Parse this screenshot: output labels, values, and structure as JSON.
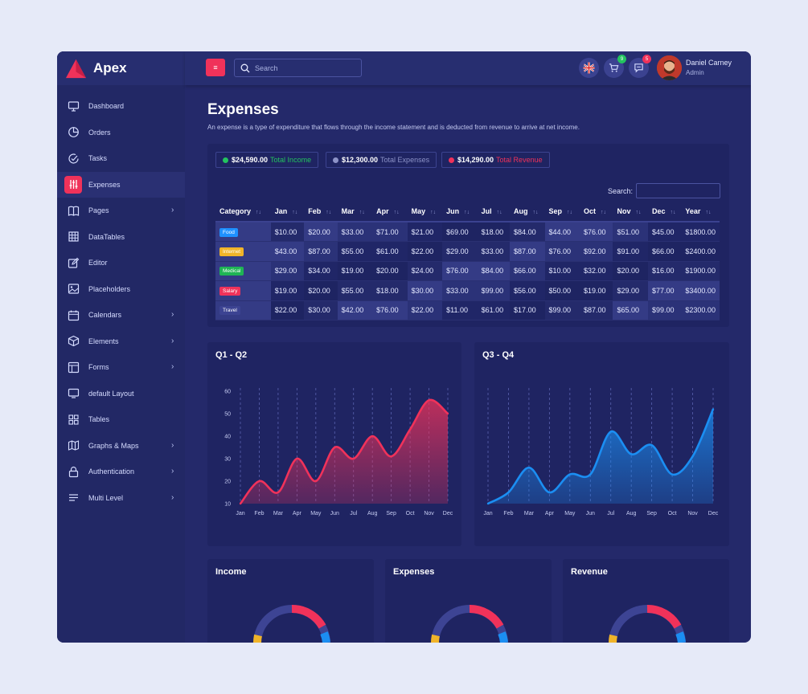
{
  "app": {
    "brand": "Apex"
  },
  "sidebar": {
    "items": [
      {
        "label": "Dashboard",
        "icon": "monitor-icon",
        "chevron": false,
        "active": false
      },
      {
        "label": "Orders",
        "icon": "pie-chart-icon",
        "chevron": false,
        "active": false
      },
      {
        "label": "Tasks",
        "icon": "check-clock-icon",
        "chevron": false,
        "active": false
      },
      {
        "label": "Expenses",
        "icon": "sliders-icon",
        "chevron": false,
        "active": true
      },
      {
        "label": "Pages",
        "icon": "book-icon",
        "chevron": true,
        "active": false
      },
      {
        "label": "DataTables",
        "icon": "grid-icon",
        "chevron": false,
        "active": false
      },
      {
        "label": "Editor",
        "icon": "edit-icon",
        "chevron": false,
        "active": false
      },
      {
        "label": "Placeholders",
        "icon": "image-icon",
        "chevron": false,
        "active": false
      },
      {
        "label": "Calendars",
        "icon": "calendar-icon",
        "chevron": true,
        "active": false
      },
      {
        "label": "Elements",
        "icon": "box-icon",
        "chevron": true,
        "active": false
      },
      {
        "label": "Forms",
        "icon": "layout-icon",
        "chevron": true,
        "active": false
      },
      {
        "label": "default Layout",
        "icon": "display-icon",
        "chevron": false,
        "active": false
      },
      {
        "label": "Tables",
        "icon": "tiles-icon",
        "chevron": false,
        "active": false
      },
      {
        "label": "Graphs & Maps",
        "icon": "map-icon",
        "chevron": true,
        "active": false
      },
      {
        "label": "Authentication",
        "icon": "lock-icon",
        "chevron": true,
        "active": false
      },
      {
        "label": "Multi Level",
        "icon": "list-icon",
        "chevron": true,
        "active": false
      }
    ]
  },
  "header": {
    "search_placeholder": "Search",
    "cart_badge": "9",
    "chat_badge": "5",
    "user_name": "Daniel Carney",
    "user_role": "Admin"
  },
  "page": {
    "title": "Expenses",
    "description": "An expense is a type of expenditure that flows through the income statement and is deducted from revenue to arrive at net income."
  },
  "summary": [
    {
      "value": "$24,590.00",
      "label": "Total Income",
      "color": "#23c35f"
    },
    {
      "value": "$12,300.00",
      "label": "Total Expenses",
      "color": "#8d93c8"
    },
    {
      "value": "$14,290.00",
      "label": "Total Revenue",
      "color": "#f0325a"
    }
  ],
  "table": {
    "search_label": "Search:",
    "headers": [
      "Category",
      "Jan",
      "Feb",
      "Mar",
      "Apr",
      "May",
      "Jun",
      "Jul",
      "Aug",
      "Sep",
      "Oct",
      "Nov",
      "Dec",
      "Year"
    ],
    "rows": [
      {
        "category": "Food",
        "color": "#1e90ff",
        "cells": [
          "$10.00",
          "$20.00",
          "$33.00",
          "$71.00",
          "$21.00",
          "$69.00",
          "$18.00",
          "$84.00",
          "$44.00",
          "$76.00",
          "$51.00",
          "$45.00",
          "$1800.00"
        ]
      },
      {
        "category": "Internet",
        "color": "#f0b429",
        "cells": [
          "$43.00",
          "$87.00",
          "$55.00",
          "$61.00",
          "$22.00",
          "$29.00",
          "$33.00",
          "$87.00",
          "$76.00",
          "$92.00",
          "$91.00",
          "$66.00",
          "$2400.00"
        ]
      },
      {
        "category": "Medical",
        "color": "#1fb455",
        "cells": [
          "$29.00",
          "$34.00",
          "$19.00",
          "$20.00",
          "$24.00",
          "$76.00",
          "$84.00",
          "$66.00",
          "$10.00",
          "$32.00",
          "$20.00",
          "$16.00",
          "$1900.00"
        ]
      },
      {
        "category": "Salary",
        "color": "#f0325a",
        "cells": [
          "$19.00",
          "$20.00",
          "$55.00",
          "$18.00",
          "$30.00",
          "$33.00",
          "$99.00",
          "$56.00",
          "$50.00",
          "$19.00",
          "$29.00",
          "$77.00",
          "$3400.00"
        ]
      },
      {
        "category": "Travel",
        "color": "#3c4392",
        "cells": [
          "$22.00",
          "$30.00",
          "$42.00",
          "$76.00",
          "$22.00",
          "$11.00",
          "$61.00",
          "$17.00",
          "$99.00",
          "$87.00",
          "$65.00",
          "$99.00",
          "$2300.00"
        ]
      }
    ]
  },
  "chart_data": [
    {
      "type": "area",
      "title": "Q1 - Q2",
      "categories": [
        "Jan",
        "Feb",
        "Mar",
        "Apr",
        "May",
        "Jun",
        "Jul",
        "Aug",
        "Sep",
        "Oct",
        "Nov",
        "Dec"
      ],
      "values": [
        10,
        20,
        15,
        30,
        20,
        35,
        30,
        40,
        31,
        43,
        56,
        50
      ],
      "ylim": [
        10,
        60
      ],
      "yticks": [
        10,
        20,
        30,
        40,
        50,
        60
      ],
      "color": "#f0325a",
      "grid": "vertical-dashed"
    },
    {
      "type": "area",
      "title": "Q3 - Q4",
      "categories": [
        "Jan",
        "Feb",
        "Mar",
        "Apr",
        "May",
        "Jun",
        "Jul",
        "Aug",
        "Sep",
        "Oct",
        "Nov",
        "Dec"
      ],
      "values": [
        10,
        15,
        26,
        15,
        23,
        23,
        42,
        32,
        36,
        23,
        31,
        52
      ],
      "ylim": [
        10,
        60
      ],
      "color": "#1b8ef2",
      "grid": "vertical-dashed"
    }
  ],
  "small_cards": [
    {
      "title": "Income"
    },
    {
      "title": "Expenses"
    },
    {
      "title": "Revenue"
    }
  ]
}
